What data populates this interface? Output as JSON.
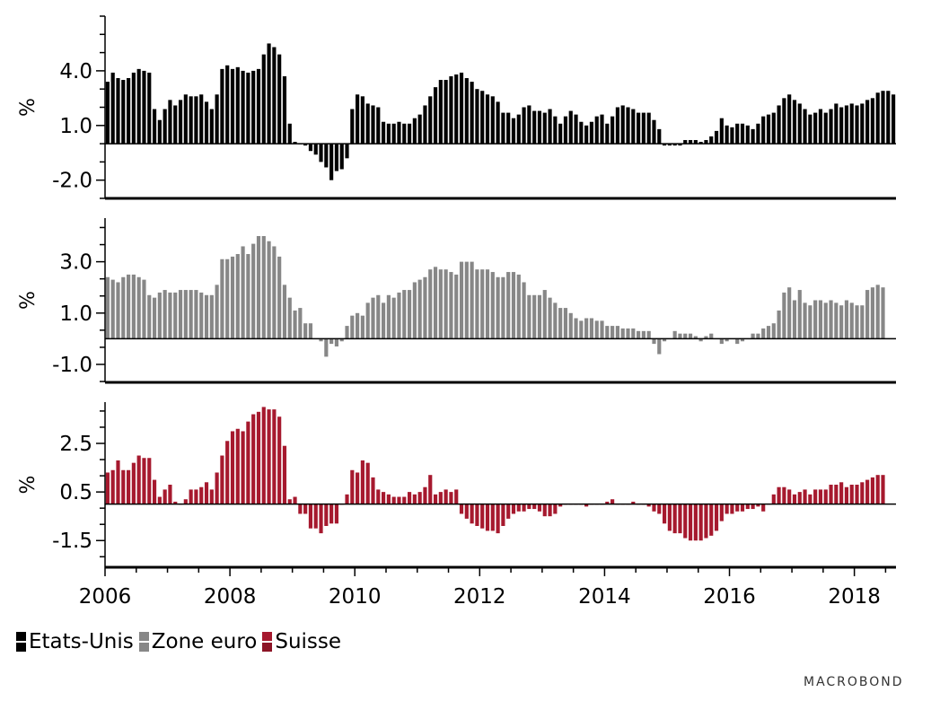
{
  "chart_data": {
    "type": "bar",
    "x_axis": {
      "start": "2006-01",
      "end": "2018-08",
      "tick_labels": [
        "2006",
        "2008",
        "2010",
        "2012",
        "2014",
        "2016",
        "2018"
      ]
    },
    "legend": {
      "position": "bottom-left",
      "entries": [
        "Etats-Unis",
        "Zone euro",
        "Suisse"
      ]
    },
    "brand": "MACROBOND",
    "panels": [
      {
        "series": "Etats-Unis",
        "color": "#000000",
        "ylabel": "%",
        "ylim": [
          -3.0,
          7.0
        ],
        "yticks": [
          -2.0,
          1.0,
          4.0
        ],
        "ytick_labels": [
          "-2.0",
          "1.0",
          "4.0"
        ],
        "values": [
          3.4,
          3.9,
          3.6,
          3.5,
          3.6,
          3.9,
          4.1,
          4.0,
          3.9,
          1.9,
          1.3,
          1.9,
          2.4,
          2.1,
          2.4,
          2.7,
          2.6,
          2.6,
          2.7,
          2.3,
          1.9,
          2.7,
          4.1,
          4.3,
          4.1,
          4.2,
          4.0,
          3.9,
          4.0,
          4.1,
          4.9,
          5.5,
          5.3,
          4.9,
          3.7,
          1.1,
          0.1,
          0.0,
          -0.1,
          -0.4,
          -0.6,
          -1.0,
          -1.3,
          -2.0,
          -1.5,
          -1.4,
          -0.8,
          1.9,
          2.7,
          2.6,
          2.2,
          2.1,
          2.0,
          1.2,
          1.1,
          1.1,
          1.2,
          1.1,
          1.1,
          1.4,
          1.6,
          2.1,
          2.6,
          3.1,
          3.5,
          3.5,
          3.7,
          3.8,
          3.9,
          3.6,
          3.4,
          3.0,
          2.9,
          2.7,
          2.6,
          2.3,
          1.7,
          1.7,
          1.4,
          1.6,
          2.0,
          2.1,
          1.8,
          1.8,
          1.7,
          1.9,
          1.5,
          1.1,
          1.5,
          1.8,
          1.6,
          1.2,
          1.0,
          1.2,
          1.5,
          1.6,
          1.1,
          1.5,
          2.0,
          2.1,
          2.0,
          1.9,
          1.7,
          1.7,
          1.7,
          1.3,
          0.8,
          -0.1,
          -0.1,
          -0.1,
          -0.1,
          0.2,
          0.2,
          0.2,
          0.1,
          0.2,
          0.4,
          0.7,
          1.4,
          1.0,
          0.9,
          1.1,
          1.1,
          1.0,
          0.8,
          1.1,
          1.5,
          1.6,
          1.7,
          2.1,
          2.5,
          2.7,
          2.4,
          2.2,
          1.9,
          1.6,
          1.7,
          1.9,
          1.7,
          1.9,
          2.2,
          2.0,
          2.1,
          2.2,
          2.1,
          2.2,
          2.4,
          2.5,
          2.8,
          2.9,
          2.9,
          2.7
        ]
      },
      {
        "series": "Zone euro",
        "color": "#878787",
        "ylabel": "%",
        "ylim": [
          -1.7,
          4.7
        ],
        "yticks": [
          -1.0,
          1.0,
          3.0
        ],
        "ytick_labels": [
          "-1.0",
          "1.0",
          "3.0"
        ],
        "values": [
          2.4,
          2.3,
          2.2,
          2.4,
          2.5,
          2.5,
          2.4,
          2.3,
          1.7,
          1.6,
          1.8,
          1.9,
          1.8,
          1.8,
          1.9,
          1.9,
          1.9,
          1.9,
          1.8,
          1.7,
          1.7,
          2.1,
          3.1,
          3.1,
          3.2,
          3.3,
          3.6,
          3.3,
          3.7,
          4.0,
          4.0,
          3.8,
          3.6,
          3.2,
          2.1,
          1.6,
          1.1,
          1.2,
          0.6,
          0.6,
          0.0,
          -0.1,
          -0.7,
          -0.2,
          -0.3,
          -0.1,
          0.5,
          0.9,
          1.0,
          0.9,
          1.4,
          1.6,
          1.7,
          1.4,
          1.7,
          1.6,
          1.8,
          1.9,
          1.9,
          2.2,
          2.3,
          2.4,
          2.7,
          2.8,
          2.7,
          2.7,
          2.6,
          2.5,
          3.0,
          3.0,
          3.0,
          2.7,
          2.7,
          2.7,
          2.6,
          2.4,
          2.4,
          2.6,
          2.6,
          2.5,
          2.2,
          1.7,
          1.7,
          1.7,
          1.9,
          1.6,
          1.4,
          1.2,
          1.2,
          1.0,
          0.8,
          0.7,
          0.8,
          0.8,
          0.7,
          0.7,
          0.5,
          0.5,
          0.5,
          0.4,
          0.4,
          0.4,
          0.3,
          0.3,
          0.3,
          -0.2,
          -0.6,
          -0.1,
          0.0,
          0.3,
          0.2,
          0.2,
          0.2,
          0.1,
          -0.1,
          0.1,
          0.2,
          0.0,
          -0.2,
          -0.1,
          0.0,
          -0.2,
          -0.1,
          0.0,
          0.2,
          0.2,
          0.4,
          0.5,
          0.6,
          1.1,
          1.8,
          2.0,
          1.5,
          1.9,
          1.4,
          1.3,
          1.5,
          1.5,
          1.4,
          1.5,
          1.4,
          1.3,
          1.5,
          1.4,
          1.3,
          1.3,
          1.9,
          2.0,
          2.1,
          2.0
        ]
      },
      {
        "series": "Suisse",
        "color": "#a6192e",
        "ylabel": "%",
        "ylim": [
          -2.6,
          4.2
        ],
        "yticks": [
          -1.5,
          0.5,
          2.5
        ],
        "ytick_labels": [
          "-1.5",
          "0.5",
          "2.5"
        ],
        "values": [
          1.3,
          1.4,
          1.8,
          1.4,
          1.4,
          1.7,
          2.0,
          1.9,
          1.9,
          1.0,
          0.3,
          0.6,
          0.8,
          0.1,
          0.0,
          0.2,
          0.6,
          0.6,
          0.7,
          0.9,
          0.6,
          1.3,
          2.0,
          2.6,
          3.0,
          3.1,
          3.0,
          3.4,
          3.7,
          3.8,
          4.0,
          3.9,
          3.9,
          3.6,
          2.4,
          0.2,
          0.3,
          -0.4,
          -0.4,
          -1.0,
          -1.0,
          -1.2,
          -0.9,
          -0.8,
          -0.8,
          0.0,
          0.4,
          1.4,
          1.3,
          1.8,
          1.7,
          1.1,
          0.6,
          0.5,
          0.4,
          0.3,
          0.3,
          0.3,
          0.5,
          0.4,
          0.5,
          0.7,
          1.2,
          0.4,
          0.5,
          0.6,
          0.5,
          0.6,
          -0.4,
          -0.6,
          -0.8,
          -0.9,
          -1.0,
          -1.1,
          -1.1,
          -1.2,
          -0.9,
          -0.6,
          -0.4,
          -0.3,
          -0.3,
          -0.2,
          -0.2,
          -0.3,
          -0.5,
          -0.5,
          -0.4,
          -0.1,
          0.0,
          0.0,
          0.0,
          0.0,
          -0.1,
          0.0,
          0.0,
          0.0,
          0.1,
          0.2,
          0.0,
          0.0,
          0.0,
          0.1,
          0.0,
          0.0,
          -0.1,
          -0.3,
          -0.4,
          -0.8,
          -1.1,
          -1.2,
          -1.2,
          -1.4,
          -1.5,
          -1.5,
          -1.5,
          -1.4,
          -1.3,
          -1.1,
          -0.7,
          -0.4,
          -0.4,
          -0.3,
          -0.3,
          -0.2,
          -0.2,
          -0.1,
          -0.3,
          0.0,
          0.4,
          0.7,
          0.7,
          0.6,
          0.4,
          0.5,
          0.6,
          0.4,
          0.6,
          0.6,
          0.6,
          0.8,
          0.8,
          0.9,
          0.7,
          0.8,
          0.8,
          0.9,
          1.0,
          1.1,
          1.2,
          1.2
        ]
      }
    ]
  }
}
